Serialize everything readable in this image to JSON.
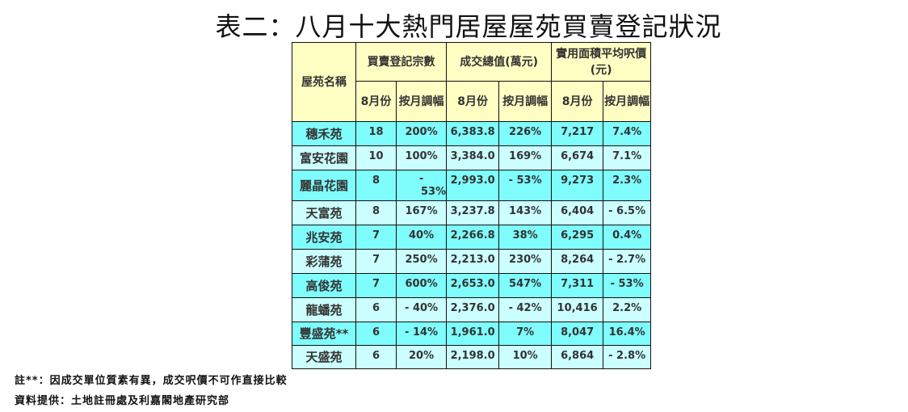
{
  "title": "表二：八月十大熱門居屋屋苑買賣登記狀況",
  "header": {
    "name": "屋苑名稱",
    "count": "買賣登記宗數",
    "value": "成交總值(萬元)",
    "price": "實用面積平均呎價(元)",
    "month": "8月份",
    "change": "按月調幅"
  },
  "rows": [
    {
      "name": "穗禾苑",
      "count": "18",
      "count_chg": "200%",
      "value": "6,383.8",
      "value_chg": "226%",
      "price": "7,217",
      "price_chg": "7.4%"
    },
    {
      "name": "富安花園",
      "count": "10",
      "count_chg": "100%",
      "value": "3,384.0",
      "value_chg": "169%",
      "price": "6,674",
      "price_chg": "7.1%"
    },
    {
      "name": "麗晶花園",
      "count": "8",
      "count_chg": "- 53%",
      "value": "2,993.0",
      "value_chg": "- 53%",
      "price": "9,273",
      "price_chg": "2.3%"
    },
    {
      "name": "天富苑",
      "count": "8",
      "count_chg": "167%",
      "value": "3,237.8",
      "value_chg": "143%",
      "price": "6,404",
      "price_chg": "- 6.5%"
    },
    {
      "name": "兆安苑",
      "count": "7",
      "count_chg": "40%",
      "value": "2,266.8",
      "value_chg": "38%",
      "price": "6,295",
      "price_chg": "0.4%"
    },
    {
      "name": "彩蒲苑",
      "count": "7",
      "count_chg": "250%",
      "value": "2,213.0",
      "value_chg": "230%",
      "price": "8,264",
      "price_chg": "- 2.7%"
    },
    {
      "name": "高俊苑",
      "count": "7",
      "count_chg": "600%",
      "value": "2,653.0",
      "value_chg": "547%",
      "price": "7,311",
      "price_chg": "- 53%"
    },
    {
      "name": "龍蟠苑",
      "count": "6",
      "count_chg": "- 40%",
      "value": "2,376.0",
      "value_chg": "- 42%",
      "price": "10,416",
      "price_chg": "2.2%"
    },
    {
      "name": "豐盛苑**",
      "count": "6",
      "count_chg": "- 14%",
      "value": "1,961.0",
      "value_chg": "7%",
      "price": "8,047",
      "price_chg": "16.4%"
    },
    {
      "name": "天盛苑",
      "count": "6",
      "count_chg": "20%",
      "value": "2,198.0",
      "value_chg": "10%",
      "price": "6,864",
      "price_chg": "- 2.8%"
    }
  ],
  "notes": {
    "note1": "註**：因成交單位質素有異，成交呎價不可作直接比較",
    "source": "資料提供：土地註冊處及利嘉閣地產研究部"
  },
  "colors": {
    "header": "#ffffc4",
    "row_dark": "#7ffcfc",
    "row_light": "#ccffff"
  }
}
